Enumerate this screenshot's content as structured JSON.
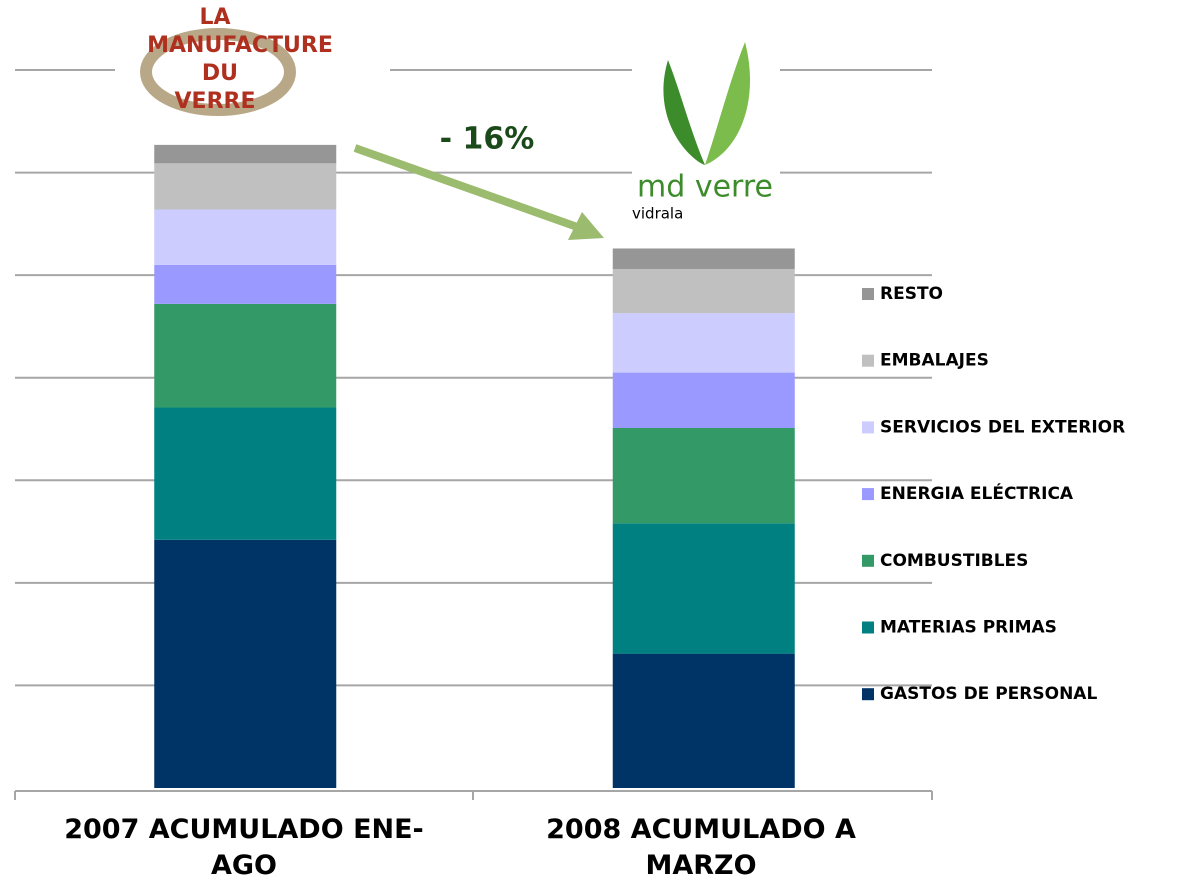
{
  "chart_data": {
    "type": "stacked_bar",
    "categories": [
      "2007 ACUMULADO ENE-AGO",
      "2008 ACUMULADO A MARZO"
    ],
    "series": [
      {
        "name": "GASTOS DE PERSONAL",
        "color": "#003366",
        "values": [
          2.42,
          1.31
        ]
      },
      {
        "name": "MATERIAS PRIMAS",
        "color": "#008080",
        "values": [
          1.29,
          1.27
        ]
      },
      {
        "name": "COMBUSTIBLES",
        "color": "#339966",
        "values": [
          1.01,
          0.93
        ]
      },
      {
        "name": "ENERGIA ELÉCTRICA",
        "color": "#9999ff",
        "values": [
          0.38,
          0.54
        ]
      },
      {
        "name": "SERVICIOS DEL EXTERIOR",
        "color": "#ccccff",
        "values": [
          0.54,
          0.58
        ]
      },
      {
        "name": "EMBALAJES",
        "color": "#c0c0c0",
        "values": [
          0.45,
          0.43
        ]
      },
      {
        "name": "RESTO",
        "color": "#969696",
        "values": [
          0.18,
          0.2
        ]
      }
    ],
    "ylim": [
      0,
      7
    ],
    "yticks": [
      1,
      2,
      3,
      4,
      5,
      6,
      7
    ],
    "grid": true,
    "legend": "right",
    "annotation": "- 16%",
    "logos": {
      "left": [
        "LA",
        "MANUFACTURE",
        "DU",
        "VERRE"
      ],
      "right": [
        "md verre",
        "vidrala"
      ]
    }
  }
}
